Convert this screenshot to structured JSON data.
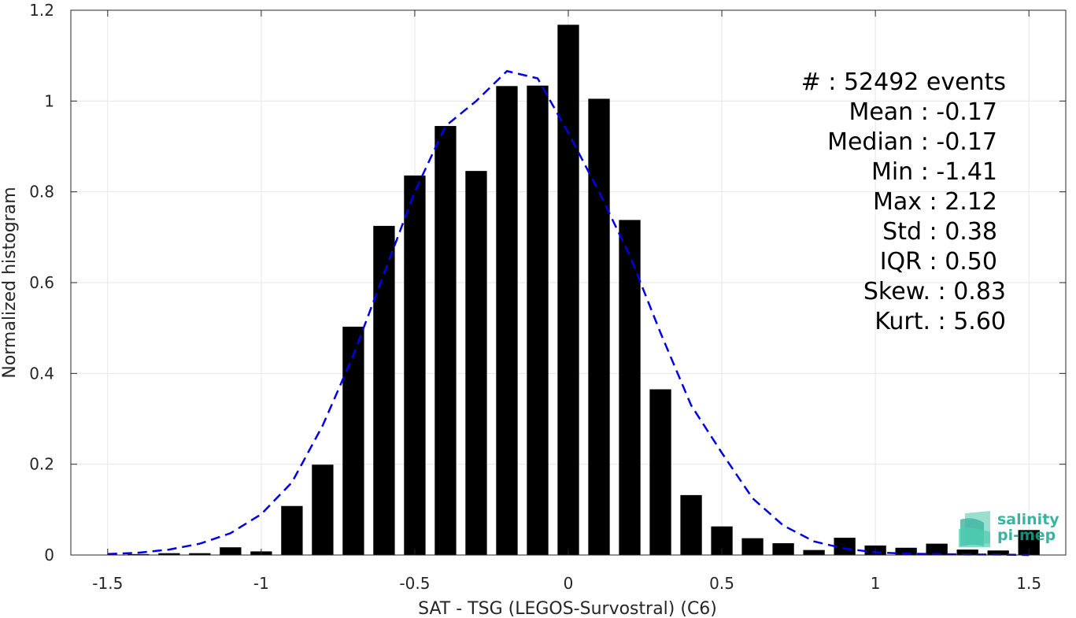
{
  "chart_data": {
    "type": "bar",
    "xlabel": "SAT - TSG (LEGOS-Survostral) (C6)",
    "ylabel": "Normalized histogram",
    "xlim": [
      -1.62,
      1.62
    ],
    "ylim": [
      0,
      1.2
    ],
    "xticks": [
      -1.5,
      -1,
      -0.5,
      0,
      0.5,
      1,
      1.5
    ],
    "xtick_labels": [
      "-1.5",
      "-1",
      "-0.5",
      "0",
      "0.5",
      "1",
      "1.5"
    ],
    "yticks": [
      0,
      0.2,
      0.4,
      0.6,
      0.8,
      1,
      1.2
    ],
    "ytick_labels": [
      "0",
      "0.2",
      "0.4",
      "0.6",
      "0.8",
      "1",
      "1.2"
    ],
    "grid": true,
    "series": [
      {
        "type": "bar",
        "color": "#000000",
        "x": [
          -1.4,
          -1.3,
          -1.2,
          -1.1,
          -1.0,
          -0.9,
          -0.8,
          -0.7,
          -0.6,
          -0.5,
          -0.4,
          -0.3,
          -0.2,
          -0.1,
          0.0,
          0.1,
          0.2,
          0.3,
          0.4,
          0.5,
          0.6,
          0.7,
          0.8,
          0.9,
          1.0,
          1.1,
          1.2,
          1.3,
          1.4,
          1.5
        ],
        "values": [
          0.002,
          0.004,
          0.004,
          0.017,
          0.008,
          0.108,
          0.199,
          0.503,
          0.725,
          0.836,
          0.945,
          0.846,
          1.033,
          1.034,
          1.168,
          1.005,
          0.738,
          0.365,
          0.132,
          0.063,
          0.037,
          0.026,
          0.011,
          0.038,
          0.021,
          0.016,
          0.025,
          0.012,
          0.01,
          0.055
        ],
        "bar_width": 0.07
      },
      {
        "type": "line",
        "style": "dashed",
        "color": "#0000e6",
        "x": [
          -1.5,
          -1.4,
          -1.3,
          -1.2,
          -1.1,
          -1.0,
          -0.9,
          -0.8,
          -0.7,
          -0.6,
          -0.5,
          -0.4,
          -0.3,
          -0.2,
          -0.1,
          0.0,
          0.1,
          0.2,
          0.3,
          0.4,
          0.5,
          0.6,
          0.7,
          0.8,
          0.9,
          1.0,
          1.1,
          1.2,
          1.3,
          1.4,
          1.5
        ],
        "values": [
          0.002,
          0.005,
          0.012,
          0.025,
          0.048,
          0.09,
          0.16,
          0.285,
          0.44,
          0.62,
          0.8,
          0.945,
          1.0,
          1.066,
          1.05,
          0.93,
          0.8,
          0.66,
          0.49,
          0.33,
          0.225,
          0.125,
          0.065,
          0.03,
          0.014,
          0.006,
          0.003,
          0.002,
          0.001,
          0.001,
          0.0
        ]
      }
    ],
    "annotations": [
      "#  : 52492 events",
      "Mean : -0.17",
      "Median : -0.17",
      "Min : -1.41",
      "Max : 2.12",
      "Std : 0.38",
      "IQR : 0.50",
      "Skew. : 0.83",
      "Kurt. : 5.60"
    ]
  },
  "logo": {
    "line1": "salinity",
    "line2": "pi-mep",
    "color": "#1aa88f"
  }
}
